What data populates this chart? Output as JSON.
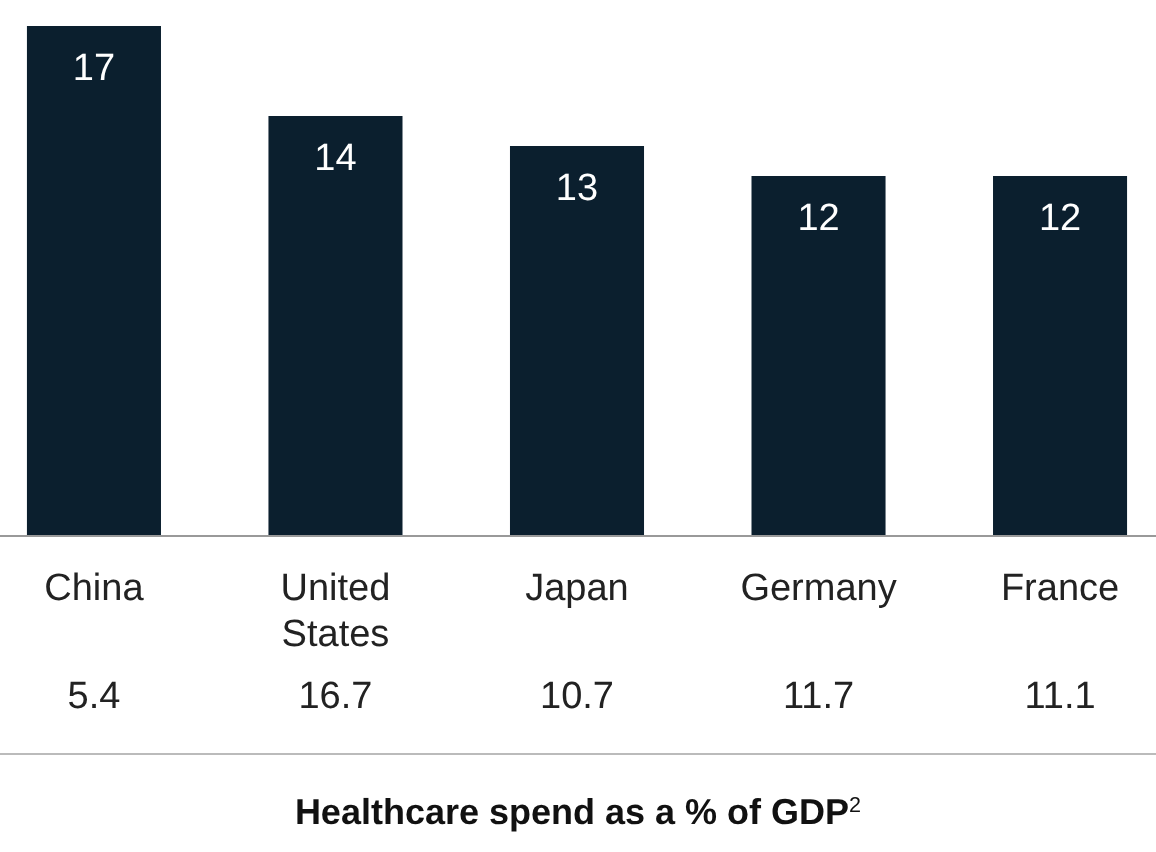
{
  "chart_data": [
    {
      "type": "bar",
      "categories": [
        "China",
        "United States",
        "Japan",
        "Germany",
        "France"
      ],
      "values": [
        17,
        14,
        13,
        12,
        12
      ],
      "color": "#0b1f2e",
      "data_labels": true
    },
    {
      "type": "other",
      "categories": [
        null,
        null,
        null,
        null,
        null
      ],
      "values": [
        5.4,
        16.7,
        10.7,
        11.7,
        11.1
      ],
      "data_labels": true,
      "xlabel": "Healthcare spend as a % of GDP$^{2}$"
    }
  ]
}
